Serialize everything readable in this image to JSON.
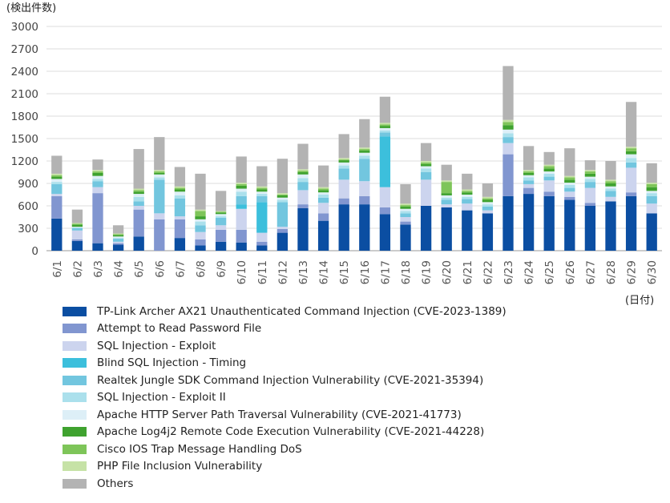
{
  "chart_data": {
    "type": "bar",
    "stacked": true,
    "ylabel": "(検出件数)",
    "xlabel": "(日付)",
    "ylim": [
      0,
      3000
    ],
    "yticks": [
      0,
      300,
      600,
      900,
      1200,
      1500,
      1800,
      2100,
      2400,
      2700,
      3000
    ],
    "grid": true,
    "legend_position": "bottom",
    "categories": [
      "6/1",
      "6/2",
      "6/3",
      "6/4",
      "6/5",
      "6/6",
      "6/7",
      "6/8",
      "6/9",
      "6/10",
      "6/11",
      "6/12",
      "6/13",
      "6/14",
      "6/15",
      "6/16",
      "6/17",
      "6/18",
      "6/19",
      "6/20",
      "6/21",
      "6/22",
      "6/23",
      "6/24",
      "6/25",
      "6/26",
      "6/27",
      "6/28",
      "6/29",
      "6/30"
    ],
    "series": [
      {
        "name": "TP-Link Archer AX21 Unauthenticated Command Injection (CVE-2023-1389)",
        "color": "#0b4ea2",
        "values": [
          430,
          130,
          100,
          80,
          190,
          0,
          170,
          70,
          120,
          110,
          70,
          240,
          570,
          400,
          620,
          620,
          490,
          350,
          600,
          580,
          540,
          500,
          730,
          760,
          730,
          680,
          600,
          660,
          730,
          500
        ]
      },
      {
        "name": "Attempt to Read Password File",
        "color": "#8196d0",
        "values": [
          300,
          20,
          670,
          20,
          360,
          420,
          250,
          80,
          160,
          170,
          50,
          50,
          50,
          100,
          80,
          110,
          90,
          40,
          0,
          0,
          0,
          0,
          560,
          80,
          60,
          40,
          40,
          0,
          50,
          0
        ]
      },
      {
        "name": "SQL Injection - Exploit",
        "color": "#ccd4ee",
        "values": [
          30,
          120,
          80,
          20,
          50,
          80,
          40,
          100,
          60,
          280,
          120,
          30,
          190,
          140,
          250,
          200,
          270,
          60,
          350,
          40,
          90,
          40,
          150,
          50,
          150,
          70,
          200,
          60,
          330,
          130
        ]
      },
      {
        "name": "Blind SQL Injection - Timing",
        "color": "#3cbfdc",
        "values": [
          0,
          0,
          0,
          0,
          0,
          0,
          0,
          0,
          0,
          60,
          410,
          0,
          0,
          0,
          0,
          0,
          680,
          0,
          0,
          0,
          0,
          0,
          0,
          0,
          0,
          0,
          0,
          0,
          0,
          0
        ]
      },
      {
        "name": "Realtek Jungle SDK Command Injection Vulnerability (CVE-2021-35394)",
        "color": "#72c6df",
        "values": [
          130,
          30,
          80,
          40,
          60,
          450,
          240,
          90,
          100,
          110,
          80,
          330,
          110,
          70,
          150,
          300,
          50,
          50,
          100,
          60,
          60,
          50,
          80,
          50,
          50,
          50,
          80,
          80,
          70,
          100
        ]
      },
      {
        "name": "SQL Injection - Exploit II",
        "color": "#abe0ec",
        "values": [
          30,
          10,
          30,
          10,
          60,
          30,
          40,
          50,
          20,
          60,
          30,
          30,
          50,
          40,
          40,
          40,
          30,
          30,
          50,
          30,
          30,
          30,
          50,
          40,
          40,
          40,
          40,
          30,
          60,
          40
        ]
      },
      {
        "name": "Apache HTTP Server Path Traversal Vulnerability (CVE-2021-41773)",
        "color": "#ddeff7",
        "values": [
          40,
          10,
          40,
          20,
          40,
          40,
          50,
          30,
          30,
          40,
          30,
          30,
          50,
          30,
          40,
          40,
          30,
          30,
          30,
          30,
          30,
          30,
          50,
          30,
          30,
          30,
          30,
          30,
          50,
          30
        ]
      },
      {
        "name": "Apache Log4j2 Remote Code Execution Vulnerability (CVE-2021-44228)",
        "color": "#3fa22f",
        "values": [
          30,
          30,
          40,
          20,
          30,
          20,
          30,
          40,
          20,
          40,
          30,
          30,
          30,
          30,
          30,
          30,
          30,
          30,
          30,
          30,
          30,
          30,
          60,
          30,
          40,
          40,
          40,
          40,
          40,
          50
        ]
      },
      {
        "name": "Cisco IOS Trap Message Handling DoS",
        "color": "#7ec559",
        "values": [
          20,
          10,
          20,
          10,
          20,
          20,
          20,
          70,
          10,
          20,
          20,
          10,
          20,
          20,
          10,
          20,
          20,
          20,
          20,
          150,
          20,
          20,
          40,
          20,
          30,
          30,
          30,
          30,
          40,
          40
        ]
      },
      {
        "name": "PHP File Inclusion Vulnerability",
        "color": "#c6e2a6",
        "values": [
          20,
          10,
          20,
          10,
          20,
          20,
          20,
          20,
          10,
          20,
          20,
          20,
          20,
          20,
          20,
          20,
          20,
          20,
          20,
          20,
          20,
          20,
          30,
          20,
          20,
          20,
          20,
          20,
          20,
          20
        ]
      },
      {
        "name": "Others",
        "color": "#b3b3b3",
        "values": [
          240,
          180,
          140,
          110,
          530,
          440,
          260,
          480,
          270,
          350,
          270,
          460,
          340,
          290,
          320,
          380,
          350,
          260,
          240,
          210,
          210,
          180,
          720,
          320,
          170,
          370,
          130,
          250,
          600,
          260
        ]
      }
    ]
  }
}
